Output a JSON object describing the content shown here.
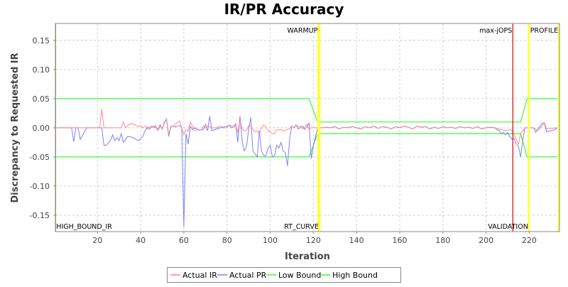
{
  "chart_data": {
    "type": "line",
    "title": "IR/PR Accuracy",
    "xlabel": "Iteration",
    "ylabel": "Discrepancy to Requested IR",
    "xlim": [
      0.5,
      234
    ],
    "ylim": [
      -0.178,
      0.179
    ],
    "xticks": [
      20,
      40,
      60,
      80,
      100,
      120,
      140,
      160,
      180,
      200,
      220
    ],
    "yticks": [
      -0.15,
      -0.1,
      -0.05,
      0.0,
      0.05,
      0.1,
      0.15
    ],
    "ytick_labels": [
      "-0.15",
      "-0.10",
      "-0.05",
      "0.00",
      "0.05",
      "0.10",
      "0.15"
    ],
    "grid": true,
    "legend_position": "bottom",
    "series": [
      {
        "name": "Actual IR",
        "color": "#ff8080",
        "points": [
          [
            1,
            0
          ],
          [
            21,
            0
          ],
          [
            22,
            0.032
          ],
          [
            23,
            0
          ],
          [
            31,
            0
          ],
          [
            32,
            0.01
          ],
          [
            33,
            0
          ],
          [
            35,
            0.007
          ],
          [
            37,
            0.006
          ],
          [
            39,
            0.002
          ],
          [
            40,
            0.004
          ],
          [
            41,
            0
          ],
          [
            42,
            0.003
          ],
          [
            44,
            0
          ],
          [
            45,
            0.003
          ],
          [
            46,
            0
          ],
          [
            47,
            0.004
          ],
          [
            48,
            -0.005
          ],
          [
            49,
            0.003
          ],
          [
            50,
            -0.002
          ],
          [
            51,
            0.008
          ],
          [
            52,
            0.015
          ],
          [
            53,
            -0.012
          ],
          [
            54,
            0.003
          ],
          [
            55,
            0.002
          ],
          [
            56,
            0.006
          ],
          [
            58,
            0.012
          ],
          [
            59,
            0
          ],
          [
            60,
            -0.012
          ],
          [
            61,
            -0.003
          ],
          [
            62,
            -0.006
          ],
          [
            63,
            0.01
          ],
          [
            64,
            0.003
          ],
          [
            65,
            -0.005
          ],
          [
            66,
            -0.004
          ],
          [
            67,
            -0.003
          ],
          [
            68,
            -0.004
          ],
          [
            69,
            0.003
          ],
          [
            70,
            0
          ],
          [
            71,
            0.003
          ],
          [
            72,
            0.002
          ],
          [
            73,
            0
          ],
          [
            75,
            0
          ],
          [
            77,
            0.003
          ],
          [
            78,
            0
          ],
          [
            80,
            0
          ],
          [
            81,
            0.005
          ],
          [
            82,
            0.003
          ],
          [
            83,
            0.001
          ],
          [
            84,
            0.005
          ],
          [
            85,
            -0.008
          ],
          [
            86,
            0.015
          ],
          [
            87,
            -0.002
          ],
          [
            88,
            -0.005
          ],
          [
            89,
            -0.005
          ],
          [
            90,
            0.004
          ],
          [
            91,
            0.003
          ],
          [
            92,
            -0.003
          ],
          [
            93,
            -0.007
          ],
          [
            94,
            -0.005
          ],
          [
            95,
            -0.01
          ],
          [
            96,
            0
          ],
          [
            97,
            0.005
          ],
          [
            98,
            0.002
          ],
          [
            99,
            -0.005
          ],
          [
            100,
            -0.007
          ],
          [
            101,
            -0.01
          ],
          [
            102,
            -0.01
          ],
          [
            103,
            -0.003
          ],
          [
            104,
            -0.004
          ],
          [
            105,
            -0.003
          ],
          [
            106,
            -0.006
          ],
          [
            107,
            -0.004
          ],
          [
            108,
            -0.003
          ],
          [
            109,
            -0.002
          ],
          [
            110,
            0.003
          ],
          [
            111,
            0
          ],
          [
            112,
            0.004
          ],
          [
            113,
            0.002
          ],
          [
            114,
            0.003
          ],
          [
            115,
            -0.002
          ],
          [
            116,
            0.002
          ],
          [
            117,
            0.006
          ],
          [
            118,
            -0.003
          ],
          [
            119,
            0
          ],
          [
            120,
            0
          ],
          [
            233,
            0
          ]
        ]
      },
      {
        "name": "Actual PR",
        "color": "#8080ff",
        "points": [
          [
            1,
            0
          ],
          [
            8,
            0
          ],
          [
            9,
            -0.024
          ],
          [
            10,
            0
          ],
          [
            11,
            0
          ],
          [
            12,
            -0.02
          ],
          [
            15,
            0
          ],
          [
            22,
            0
          ],
          [
            23,
            -0.03
          ],
          [
            24,
            -0.03
          ],
          [
            26,
            -0.022
          ],
          [
            27,
            -0.012
          ],
          [
            28,
            -0.022
          ],
          [
            29,
            -0.017
          ],
          [
            30,
            -0.022
          ],
          [
            31,
            -0.01
          ],
          [
            32,
            -0.025
          ],
          [
            34,
            -0.015
          ],
          [
            36,
            -0.016
          ],
          [
            38,
            -0.02
          ],
          [
            39,
            -0.022
          ],
          [
            41,
            -0.015
          ],
          [
            42,
            -0.005
          ],
          [
            43,
            0
          ],
          [
            44,
            -0.002
          ],
          [
            46,
            0.003
          ],
          [
            48,
            -0.003
          ],
          [
            49,
            0.005
          ],
          [
            50,
            -0.002
          ],
          [
            51,
            0.01
          ],
          [
            52,
            0.015
          ],
          [
            53,
            -0.015
          ],
          [
            54,
            0.003
          ],
          [
            56,
            0.002
          ],
          [
            58,
            0.004
          ],
          [
            59,
            0.002
          ],
          [
            60,
            -0.17
          ],
          [
            61,
            -0.01
          ],
          [
            62,
            -0.028
          ],
          [
            63,
            0.003
          ],
          [
            64,
            -0.003
          ],
          [
            65,
            0
          ],
          [
            67,
            -0.004
          ],
          [
            69,
            -0.003
          ],
          [
            70,
            0.006
          ],
          [
            71,
            -0.005
          ],
          [
            72,
            0.02
          ],
          [
            73,
            -0.005
          ],
          [
            75,
            -0.002
          ],
          [
            77,
            0
          ],
          [
            79,
            0.002
          ],
          [
            81,
            0.004
          ],
          [
            82,
            0
          ],
          [
            83,
            0.002
          ],
          [
            84,
            0.007
          ],
          [
            85,
            -0.025
          ],
          [
            86,
            0.02
          ],
          [
            87,
            -0.022
          ],
          [
            88,
            -0.04
          ],
          [
            89,
            -0.032
          ],
          [
            90,
            -0.005
          ],
          [
            91,
            0.018
          ],
          [
            92,
            -0.04
          ],
          [
            93,
            -0.045
          ],
          [
            94,
            -0.05
          ],
          [
            95,
            -0.005
          ],
          [
            96,
            -0.04
          ],
          [
            97,
            -0.048
          ],
          [
            98,
            -0.048
          ],
          [
            99,
            -0.035
          ],
          [
            100,
            -0.03
          ],
          [
            101,
            -0.05
          ],
          [
            102,
            -0.048
          ],
          [
            103,
            -0.03
          ],
          [
            104,
            -0.035
          ],
          [
            105,
            -0.025
          ],
          [
            106,
            -0.04
          ],
          [
            107,
            -0.042
          ],
          [
            108,
            -0.065
          ],
          [
            109,
            -0.02
          ],
          [
            110,
            0.003
          ],
          [
            111,
            0
          ],
          [
            112,
            0.005
          ],
          [
            113,
            -0.002
          ],
          [
            115,
            0.003
          ],
          [
            116,
            -0.003
          ],
          [
            118,
            0.008
          ],
          [
            119,
            -0.053
          ],
          [
            120,
            -0.03
          ],
          [
            122,
            0
          ],
          [
            204,
            0
          ],
          [
            205,
            -0.003
          ],
          [
            206,
            -0.005
          ],
          [
            207,
            -0.01
          ],
          [
            208,
            -0.008
          ],
          [
            209,
            -0.012
          ],
          [
            210,
            -0.008
          ],
          [
            211,
            -0.015
          ],
          [
            212,
            -0.02
          ],
          [
            213,
            -0.018
          ],
          [
            214,
            -0.028
          ],
          [
            215,
            -0.032
          ],
          [
            216,
            -0.05
          ],
          [
            217,
            -0.02
          ],
          [
            218,
            0
          ],
          [
            222,
            0
          ],
          [
            223,
            -0.008
          ],
          [
            224,
            -0.002
          ],
          [
            226,
            0.008
          ],
          [
            227,
            0.008
          ],
          [
            228,
            -0.007
          ],
          [
            232,
            -0.003
          ],
          [
            233,
            0
          ]
        ]
      },
      {
        "name": "Low Bound",
        "color": "#33ff33",
        "points": [
          [
            1,
            -0.05
          ],
          [
            118,
            -0.05
          ],
          [
            122,
            -0.01
          ],
          [
            216,
            -0.01
          ],
          [
            219,
            -0.05
          ],
          [
            233,
            -0.05
          ]
        ]
      },
      {
        "name": "High Bound",
        "color": "#33ff33",
        "points": [
          [
            1,
            0.05
          ],
          [
            118,
            0.05
          ],
          [
            122,
            0.01
          ],
          [
            216,
            0.01
          ],
          [
            219,
            0.05
          ],
          [
            233,
            0.05
          ]
        ]
      }
    ],
    "middle_noise": {
      "series": [
        "Actual IR",
        "Actual PR"
      ],
      "points": [
        [
          124,
          0
        ],
        [
          126,
          0.001
        ],
        [
          128,
          0
        ],
        [
          130,
          0.002
        ],
        [
          132,
          -0.002
        ],
        [
          134,
          0.001
        ],
        [
          136,
          0
        ],
        [
          138,
          0.002
        ],
        [
          140,
          0
        ],
        [
          142,
          -0.002
        ],
        [
          144,
          0.002
        ],
        [
          146,
          0
        ],
        [
          148,
          0.003
        ],
        [
          150,
          -0.001
        ],
        [
          152,
          0.002
        ],
        [
          154,
          0.001
        ],
        [
          156,
          -0.002
        ],
        [
          158,
          0.002
        ],
        [
          160,
          0
        ],
        [
          162,
          0.003
        ],
        [
          164,
          0.001
        ],
        [
          166,
          -0.002
        ],
        [
          168,
          0.003
        ],
        [
          170,
          0.001
        ],
        [
          172,
          0.002
        ],
        [
          174,
          -0.002
        ],
        [
          176,
          0.001
        ],
        [
          178,
          -0.001
        ],
        [
          180,
          0.002
        ],
        [
          182,
          0
        ],
        [
          184,
          0.001
        ],
        [
          186,
          -0.001
        ],
        [
          188,
          0.002
        ],
        [
          190,
          0
        ],
        [
          192,
          0.001
        ],
        [
          194,
          -0.001
        ],
        [
          196,
          0.002
        ],
        [
          198,
          -0.002
        ],
        [
          200,
          0
        ],
        [
          202,
          0.001
        ],
        [
          204,
          0
        ]
      ]
    },
    "ir_tail": [
      [
        204,
        0
      ],
      [
        206,
        -0.002
      ],
      [
        208,
        -0.004
      ],
      [
        210,
        -0.005
      ],
      [
        211,
        -0.003
      ],
      [
        212,
        -0.005
      ],
      [
        213,
        -0.012
      ],
      [
        214,
        -0.02
      ],
      [
        215,
        -0.028
      ],
      [
        216,
        -0.01
      ],
      [
        217,
        -0.005
      ],
      [
        218,
        0
      ],
      [
        222,
        0
      ],
      [
        224,
        -0.005
      ],
      [
        226,
        0.004
      ],
      [
        227,
        0.009
      ],
      [
        228,
        -0.002
      ],
      [
        233,
        0
      ]
    ],
    "markers": [
      {
        "label": "HIGH_BOUND_IR",
        "x": 0.6,
        "color": "#808040",
        "label_pos": "bottom",
        "label_side": "right"
      },
      {
        "label": "WARMUP",
        "x": 122.3,
        "color": "#ffff40",
        "label_pos": "top",
        "label_side": "left"
      },
      {
        "label": "RT_CURVE",
        "x": 122.8,
        "color": "#ffff40",
        "label_pos": "bottom",
        "label_side": "left"
      },
      {
        "label": "max-jOPS",
        "x": 212.4,
        "color": "#dd0000",
        "label_pos": "top",
        "label_side": "left"
      },
      {
        "label": "VALIDATION",
        "x": 219.8,
        "color": "#ffff40",
        "label_pos": "bottom",
        "label_side": "left"
      },
      {
        "label": "PROFILE",
        "x": 233.7,
        "color": "#ffff40",
        "label_pos": "top",
        "label_side": "left"
      }
    ]
  }
}
